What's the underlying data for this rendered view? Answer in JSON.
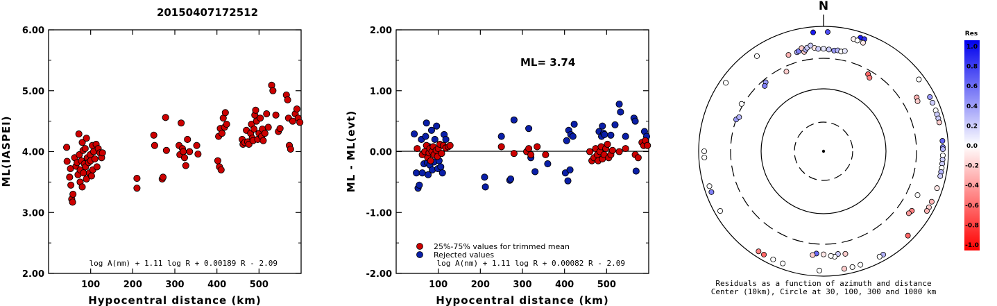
{
  "title": "20150407172512",
  "chart_data": [
    {
      "type": "scatter",
      "xlabel": "Hypocentral distance (km)",
      "ylabel": "ML(IASPEI)",
      "xlim": [
        0,
        600
      ],
      "ylim": [
        2.0,
        6.0
      ],
      "xticks": [
        "100",
        "200",
        "300",
        "400",
        "500"
      ],
      "yticks": [
        "2.00",
        "3.00",
        "4.00",
        "5.00",
        "6.00"
      ],
      "formula": "log A(nm) + 1.11 log R + 0.00189 R - 2.09",
      "points_color": "#cc0000",
      "points": [
        [
          43,
          4.07
        ],
        [
          44,
          3.84
        ],
        [
          50,
          3.58
        ],
        [
          52,
          3.72
        ],
        [
          53,
          3.45
        ],
        [
          55,
          3.22
        ],
        [
          57,
          3.17
        ],
        [
          58,
          3.3
        ],
        [
          62,
          3.9
        ],
        [
          65,
          3.76
        ],
        [
          68,
          3.82
        ],
        [
          70,
          3.62
        ],
        [
          72,
          4.29
        ],
        [
          73,
          3.95
        ],
        [
          75,
          3.7
        ],
        [
          75,
          3.5
        ],
        [
          78,
          3.85
        ],
        [
          80,
          4.15
        ],
        [
          80,
          3.42
        ],
        [
          82,
          4.02
        ],
        [
          83,
          3.65
        ],
        [
          85,
          3.8
        ],
        [
          87,
          4.05
        ],
        [
          88,
          3.75
        ],
        [
          90,
          4.22
        ],
        [
          90,
          3.55
        ],
        [
          92,
          3.9
        ],
        [
          95,
          3.82
        ],
        [
          97,
          3.65
        ],
        [
          99,
          3.95
        ],
        [
          100,
          3.85
        ],
        [
          102,
          3.6
        ],
        [
          104,
          4.1
        ],
        [
          105,
          3.7
        ],
        [
          107,
          4.0
        ],
        [
          110,
          3.88
        ],
        [
          113,
          4.12
        ],
        [
          115,
          3.75
        ],
        [
          118,
          4.05
        ],
        [
          122,
          3.98
        ],
        [
          126,
          3.9
        ],
        [
          128,
          3.98
        ],
        [
          210,
          3.56
        ],
        [
          210,
          3.4
        ],
        [
          250,
          4.27
        ],
        [
          252,
          4.1
        ],
        [
          270,
          3.55
        ],
        [
          272,
          3.58
        ],
        [
          278,
          4.56
        ],
        [
          280,
          4.02
        ],
        [
          310,
          4.1
        ],
        [
          312,
          3.95
        ],
        [
          315,
          4.47
        ],
        [
          318,
          4.05
        ],
        [
          320,
          4.0
        ],
        [
          323,
          3.9
        ],
        [
          326,
          3.77
        ],
        [
          330,
          4.2
        ],
        [
          335,
          4.0
        ],
        [
          352,
          4.1
        ],
        [
          355,
          3.96
        ],
        [
          402,
          3.85
        ],
        [
          404,
          4.25
        ],
        [
          406,
          3.75
        ],
        [
          408,
          4.38
        ],
        [
          410,
          3.7
        ],
        [
          412,
          4.3
        ],
        [
          415,
          4.55
        ],
        [
          418,
          4.4
        ],
        [
          420,
          4.64
        ],
        [
          423,
          4.45
        ],
        [
          460,
          4.2
        ],
        [
          462,
          4.12
        ],
        [
          466,
          4.15
        ],
        [
          470,
          4.35
        ],
        [
          473,
          4.16
        ],
        [
          476,
          4.12
        ],
        [
          480,
          4.3
        ],
        [
          482,
          4.45
        ],
        [
          484,
          4.22
        ],
        [
          486,
          4.18
        ],
        [
          488,
          4.37
        ],
        [
          490,
          4.6
        ],
        [
          492,
          4.68
        ],
        [
          494,
          4.5
        ],
        [
          497,
          4.2
        ],
        [
          500,
          4.3
        ],
        [
          503,
          4.55
        ],
        [
          506,
          4.25
        ],
        [
          508,
          4.37
        ],
        [
          510,
          4.18
        ],
        [
          514,
          4.3
        ],
        [
          518,
          4.62
        ],
        [
          522,
          4.4
        ],
        [
          530,
          5.09
        ],
        [
          533,
          5.0
        ],
        [
          540,
          4.6
        ],
        [
          546,
          4.33
        ],
        [
          550,
          4.38
        ],
        [
          565,
          4.93
        ],
        [
          568,
          4.85
        ],
        [
          570,
          4.55
        ],
        [
          572,
          4.1
        ],
        [
          575,
          4.04
        ],
        [
          580,
          4.5
        ],
        [
          586,
          4.62
        ],
        [
          590,
          4.7
        ],
        [
          593,
          4.55
        ],
        [
          597,
          4.48
        ]
      ]
    },
    {
      "type": "scatter",
      "xlabel": "Hypocentral distance (km)",
      "ylabel": "ML - ML(evt)",
      "xlim": [
        0,
        600
      ],
      "ylim": [
        -2.0,
        2.0
      ],
      "xticks": [
        "100",
        "200",
        "300",
        "400",
        "500"
      ],
      "yticks": [
        "-2.00",
        "-1.00",
        "0.00",
        "1.00",
        "2.00"
      ],
      "annotation": "ML= 3.74",
      "formula": "log A(nm) + 1.11 log R + 0.00082 R - 2.09",
      "legend": [
        {
          "label": "25%-75% values for trimmed mean",
          "color": "#cc0000"
        },
        {
          "label": "Rejected values",
          "color": "#0a1fa8"
        }
      ],
      "points_red": [
        [
          50,
          0.05
        ],
        [
          62,
          -0.05
        ],
        [
          68,
          0.0
        ],
        [
          72,
          0.1
        ],
        [
          75,
          -0.1
        ],
        [
          78,
          -0.02
        ],
        [
          80,
          0.05
        ],
        [
          82,
          -0.15
        ],
        [
          85,
          0.0
        ],
        [
          88,
          0.08
        ],
        [
          90,
          -0.05
        ],
        [
          95,
          0.02
        ],
        [
          98,
          -0.08
        ],
        [
          100,
          0.05
        ],
        [
          104,
          0.12
        ],
        [
          108,
          -0.03
        ],
        [
          112,
          0.1
        ],
        [
          118,
          0.06
        ],
        [
          124,
          0.08
        ],
        [
          128,
          0.1
        ],
        [
          250,
          0.08
        ],
        [
          280,
          -0.03
        ],
        [
          310,
          0.0
        ],
        [
          315,
          0.05
        ],
        [
          320,
          -0.05
        ],
        [
          335,
          0.08
        ],
        [
          355,
          -0.05
        ],
        [
          460,
          0.0
        ],
        [
          465,
          -0.15
        ],
        [
          470,
          -0.1
        ],
        [
          474,
          0.05
        ],
        [
          478,
          -0.05
        ],
        [
          480,
          -0.15
        ],
        [
          484,
          0.0
        ],
        [
          487,
          0.08
        ],
        [
          490,
          -0.12
        ],
        [
          494,
          -0.05
        ],
        [
          498,
          0.05
        ],
        [
          502,
          0.12
        ],
        [
          505,
          -0.1
        ],
        [
          510,
          -0.05
        ],
        [
          514,
          0.02
        ],
        [
          530,
          0.0
        ],
        [
          545,
          0.05
        ],
        [
          568,
          -0.05
        ],
        [
          575,
          -0.1
        ],
        [
          584,
          0.15
        ],
        [
          588,
          0.1
        ],
        [
          592,
          0.18
        ],
        [
          597,
          0.1
        ]
      ],
      "points_blue": [
        [
          43,
          0.29
        ],
        [
          48,
          -0.35
        ],
        [
          52,
          -0.6
        ],
        [
          55,
          -0.55
        ],
        [
          60,
          0.2
        ],
        [
          62,
          -0.35
        ],
        [
          66,
          -0.2
        ],
        [
          70,
          0.25
        ],
        [
          72,
          0.47
        ],
        [
          74,
          -0.18
        ],
        [
          76,
          -0.38
        ],
        [
          78,
          0.08
        ],
        [
          80,
          -0.22
        ],
        [
          84,
          0.35
        ],
        [
          86,
          -0.3
        ],
        [
          90,
          -0.17
        ],
        [
          92,
          0.2
        ],
        [
          96,
          0.42
        ],
        [
          99,
          -0.28
        ],
        [
          102,
          -0.15
        ],
        [
          106,
          -0.25
        ],
        [
          110,
          -0.35
        ],
        [
          114,
          0.28
        ],
        [
          118,
          0.2
        ],
        [
          210,
          -0.42
        ],
        [
          212,
          -0.58
        ],
        [
          250,
          0.25
        ],
        [
          270,
          -0.47
        ],
        [
          272,
          -0.45
        ],
        [
          280,
          0.52
        ],
        [
          315,
          0.38
        ],
        [
          320,
          -0.1
        ],
        [
          330,
          -0.33
        ],
        [
          360,
          -0.2
        ],
        [
          402,
          -0.35
        ],
        [
          405,
          0.18
        ],
        [
          408,
          -0.48
        ],
        [
          410,
          0.35
        ],
        [
          413,
          -0.3
        ],
        [
          415,
          0.28
        ],
        [
          420,
          0.25
        ],
        [
          423,
          0.45
        ],
        [
          482,
          0.33
        ],
        [
          488,
          0.25
        ],
        [
          490,
          0.42
        ],
        [
          493,
          0.3
        ],
        [
          495,
          0.28
        ],
        [
          510,
          0.27
        ],
        [
          520,
          0.44
        ],
        [
          530,
          0.78
        ],
        [
          533,
          0.65
        ],
        [
          545,
          0.25
        ],
        [
          565,
          0.55
        ],
        [
          568,
          0.5
        ],
        [
          570,
          -0.32
        ],
        [
          590,
          0.33
        ],
        [
          595,
          0.25
        ]
      ]
    },
    {
      "type": "polar",
      "north_label": "N",
      "caption": [
        "Residuals as a function of azimuth and distance",
        "Center (10km), Circle at 30, 100, 300 and 1000 km"
      ],
      "rings_km": [
        30,
        100,
        300,
        1000
      ],
      "colorbar": {
        "title": "Res",
        "labels": [
          "1.0",
          "0.8",
          "0.6",
          "0.4",
          "0.2",
          "0.0",
          "-0.2",
          "-0.4",
          "-0.6",
          "-0.8",
          "-1.0"
        ],
        "max_color": "#0000ee",
        "min_color": "#ff0000"
      },
      "stations": [
        {
          "az": 355,
          "d": 1000,
          "res": 0.9
        },
        {
          "az": 2,
          "d": 1000,
          "res": 0.7
        },
        {
          "az": 18,
          "d": 1000,
          "res": 0.9
        },
        {
          "az": 20,
          "d": 1000,
          "res": 0.8
        },
        {
          "az": 15,
          "d": 720,
          "res": -0.05
        },
        {
          "az": 17,
          "d": 710,
          "res": 0.0
        },
        {
          "az": 20,
          "d": 700,
          "res": -0.1
        },
        {
          "az": 325,
          "d": 720,
          "res": 0.0
        },
        {
          "az": 305,
          "d": 1000,
          "res": 0.0
        },
        {
          "az": 340,
          "d": 430,
          "res": -0.3
        },
        {
          "az": 345,
          "d": 430,
          "res": 0.3
        },
        {
          "az": 346,
          "d": 440,
          "res": 0.5
        },
        {
          "az": 348,
          "d": 480,
          "res": -0.2
        },
        {
          "az": 349,
          "d": 410,
          "res": -0.2
        },
        {
          "az": 350,
          "d": 440,
          "res": 0.3
        },
        {
          "az": 351,
          "d": 470,
          "res": 0.2
        },
        {
          "az": 353,
          "d": 500,
          "res": 0.2
        },
        {
          "az": 355,
          "d": 450,
          "res": -0.1
        },
        {
          "az": 357,
          "d": 430,
          "res": 0.2
        },
        {
          "az": 360,
          "d": 430,
          "res": 0.1
        },
        {
          "az": 3,
          "d": 420,
          "res": 0.2
        },
        {
          "az": 6,
          "d": 410,
          "res": 0.4
        },
        {
          "az": 8,
          "d": 420,
          "res": 0.3
        },
        {
          "az": 10,
          "d": 410,
          "res": 0.0
        },
        {
          "az": 12,
          "d": 430,
          "res": 0.1
        },
        {
          "az": 335,
          "d": 250,
          "res": -0.2
        },
        {
          "az": 320,
          "d": 270,
          "res": 0.4
        },
        {
          "az": 318,
          "d": 250,
          "res": 0.5
        },
        {
          "az": 30,
          "d": 260,
          "res": -0.6
        },
        {
          "az": 32,
          "d": 240,
          "res": -0.5
        },
        {
          "az": 60,
          "d": 520,
          "res": -0.3
        },
        {
          "az": 62,
          "d": 500,
          "res": -0.2
        },
        {
          "az": 53,
          "d": 1000,
          "res": 0.0
        },
        {
          "az": 63,
          "d": 1000,
          "res": 0.4
        },
        {
          "az": 66,
          "d": 900,
          "res": 0.2
        },
        {
          "az": 70,
          "d": 850,
          "res": 0.0
        },
        {
          "az": 72,
          "d": 1000,
          "res": 0.2
        },
        {
          "az": 74,
          "d": 1000,
          "res": 0.2
        },
        {
          "az": 76,
          "d": 900,
          "res": -0.2
        },
        {
          "az": 85,
          "d": 900,
          "res": 0.6
        },
        {
          "az": 88,
          "d": 1000,
          "res": 0.5
        },
        {
          "az": 89,
          "d": 850,
          "res": 0.3
        },
        {
          "az": 92,
          "d": 900,
          "res": 0.0
        },
        {
          "az": 94,
          "d": 1000,
          "res": 0.2
        },
        {
          "az": 96,
          "d": 950,
          "res": 0.2
        },
        {
          "az": 98,
          "d": 1000,
          "res": 0.0
        },
        {
          "az": 100,
          "d": 900,
          "res": 0.3
        },
        {
          "az": 102,
          "d": 1000,
          "res": 0.2
        },
        {
          "az": 115,
          "d": 450,
          "res": 0.0
        },
        {
          "az": 108,
          "d": 1000,
          "res": -0.1
        },
        {
          "az": 124,
          "d": 500,
          "res": -0.5
        },
        {
          "az": 126,
          "d": 480,
          "res": -0.4
        },
        {
          "az": 115,
          "d": 1000,
          "res": -0.3
        },
        {
          "az": 118,
          "d": 1000,
          "res": -0.2
        },
        {
          "az": 120,
          "d": 900,
          "res": -0.3
        },
        {
          "az": 135,
          "d": 1000,
          "res": -0.6
        },
        {
          "az": 150,
          "d": 1000,
          "res": 0.3
        },
        {
          "az": 152,
          "d": 1000,
          "res": 0.0
        },
        {
          "az": 162,
          "d": 1000,
          "res": 0.0
        },
        {
          "az": 166,
          "d": 1000,
          "res": 0.0
        },
        {
          "az": 170,
          "d": 850,
          "res": -0.2
        },
        {
          "az": 182,
          "d": 1000,
          "res": 0.0
        },
        {
          "az": 168,
          "d": 470,
          "res": -0.2
        },
        {
          "az": 172,
          "d": 450,
          "res": 0.2
        },
        {
          "az": 174,
          "d": 490,
          "res": 0.0
        },
        {
          "az": 176,
          "d": 470,
          "res": 0.0
        },
        {
          "az": 180,
          "d": 440,
          "res": -0.1
        },
        {
          "az": 184,
          "d": 430,
          "res": 0.6
        },
        {
          "az": 186,
          "d": 460,
          "res": -0.2
        },
        {
          "az": 200,
          "d": 1000,
          "res": 0.0
        },
        {
          "az": 205,
          "d": 1000,
          "res": 0.0
        },
        {
          "az": 210,
          "d": 900,
          "res": -0.6
        },
        {
          "az": 213,
          "d": 900,
          "res": -0.5
        },
        {
          "az": 240,
          "d": 1000,
          "res": 0.0
        },
        {
          "az": 250,
          "d": 1000,
          "res": 0.5
        },
        {
          "az": 253,
          "d": 1000,
          "res": 0.0
        },
        {
          "az": 267,
          "d": 1000,
          "res": 0.0
        },
        {
          "az": 270,
          "d": 1000,
          "res": 0.0
        },
        {
          "az": 300,
          "d": 320,
          "res": 0.0
        },
        {
          "az": 290,
          "d": 300,
          "res": 0.4
        },
        {
          "az": 292,
          "d": 280,
          "res": 0.3
        }
      ]
    }
  ]
}
